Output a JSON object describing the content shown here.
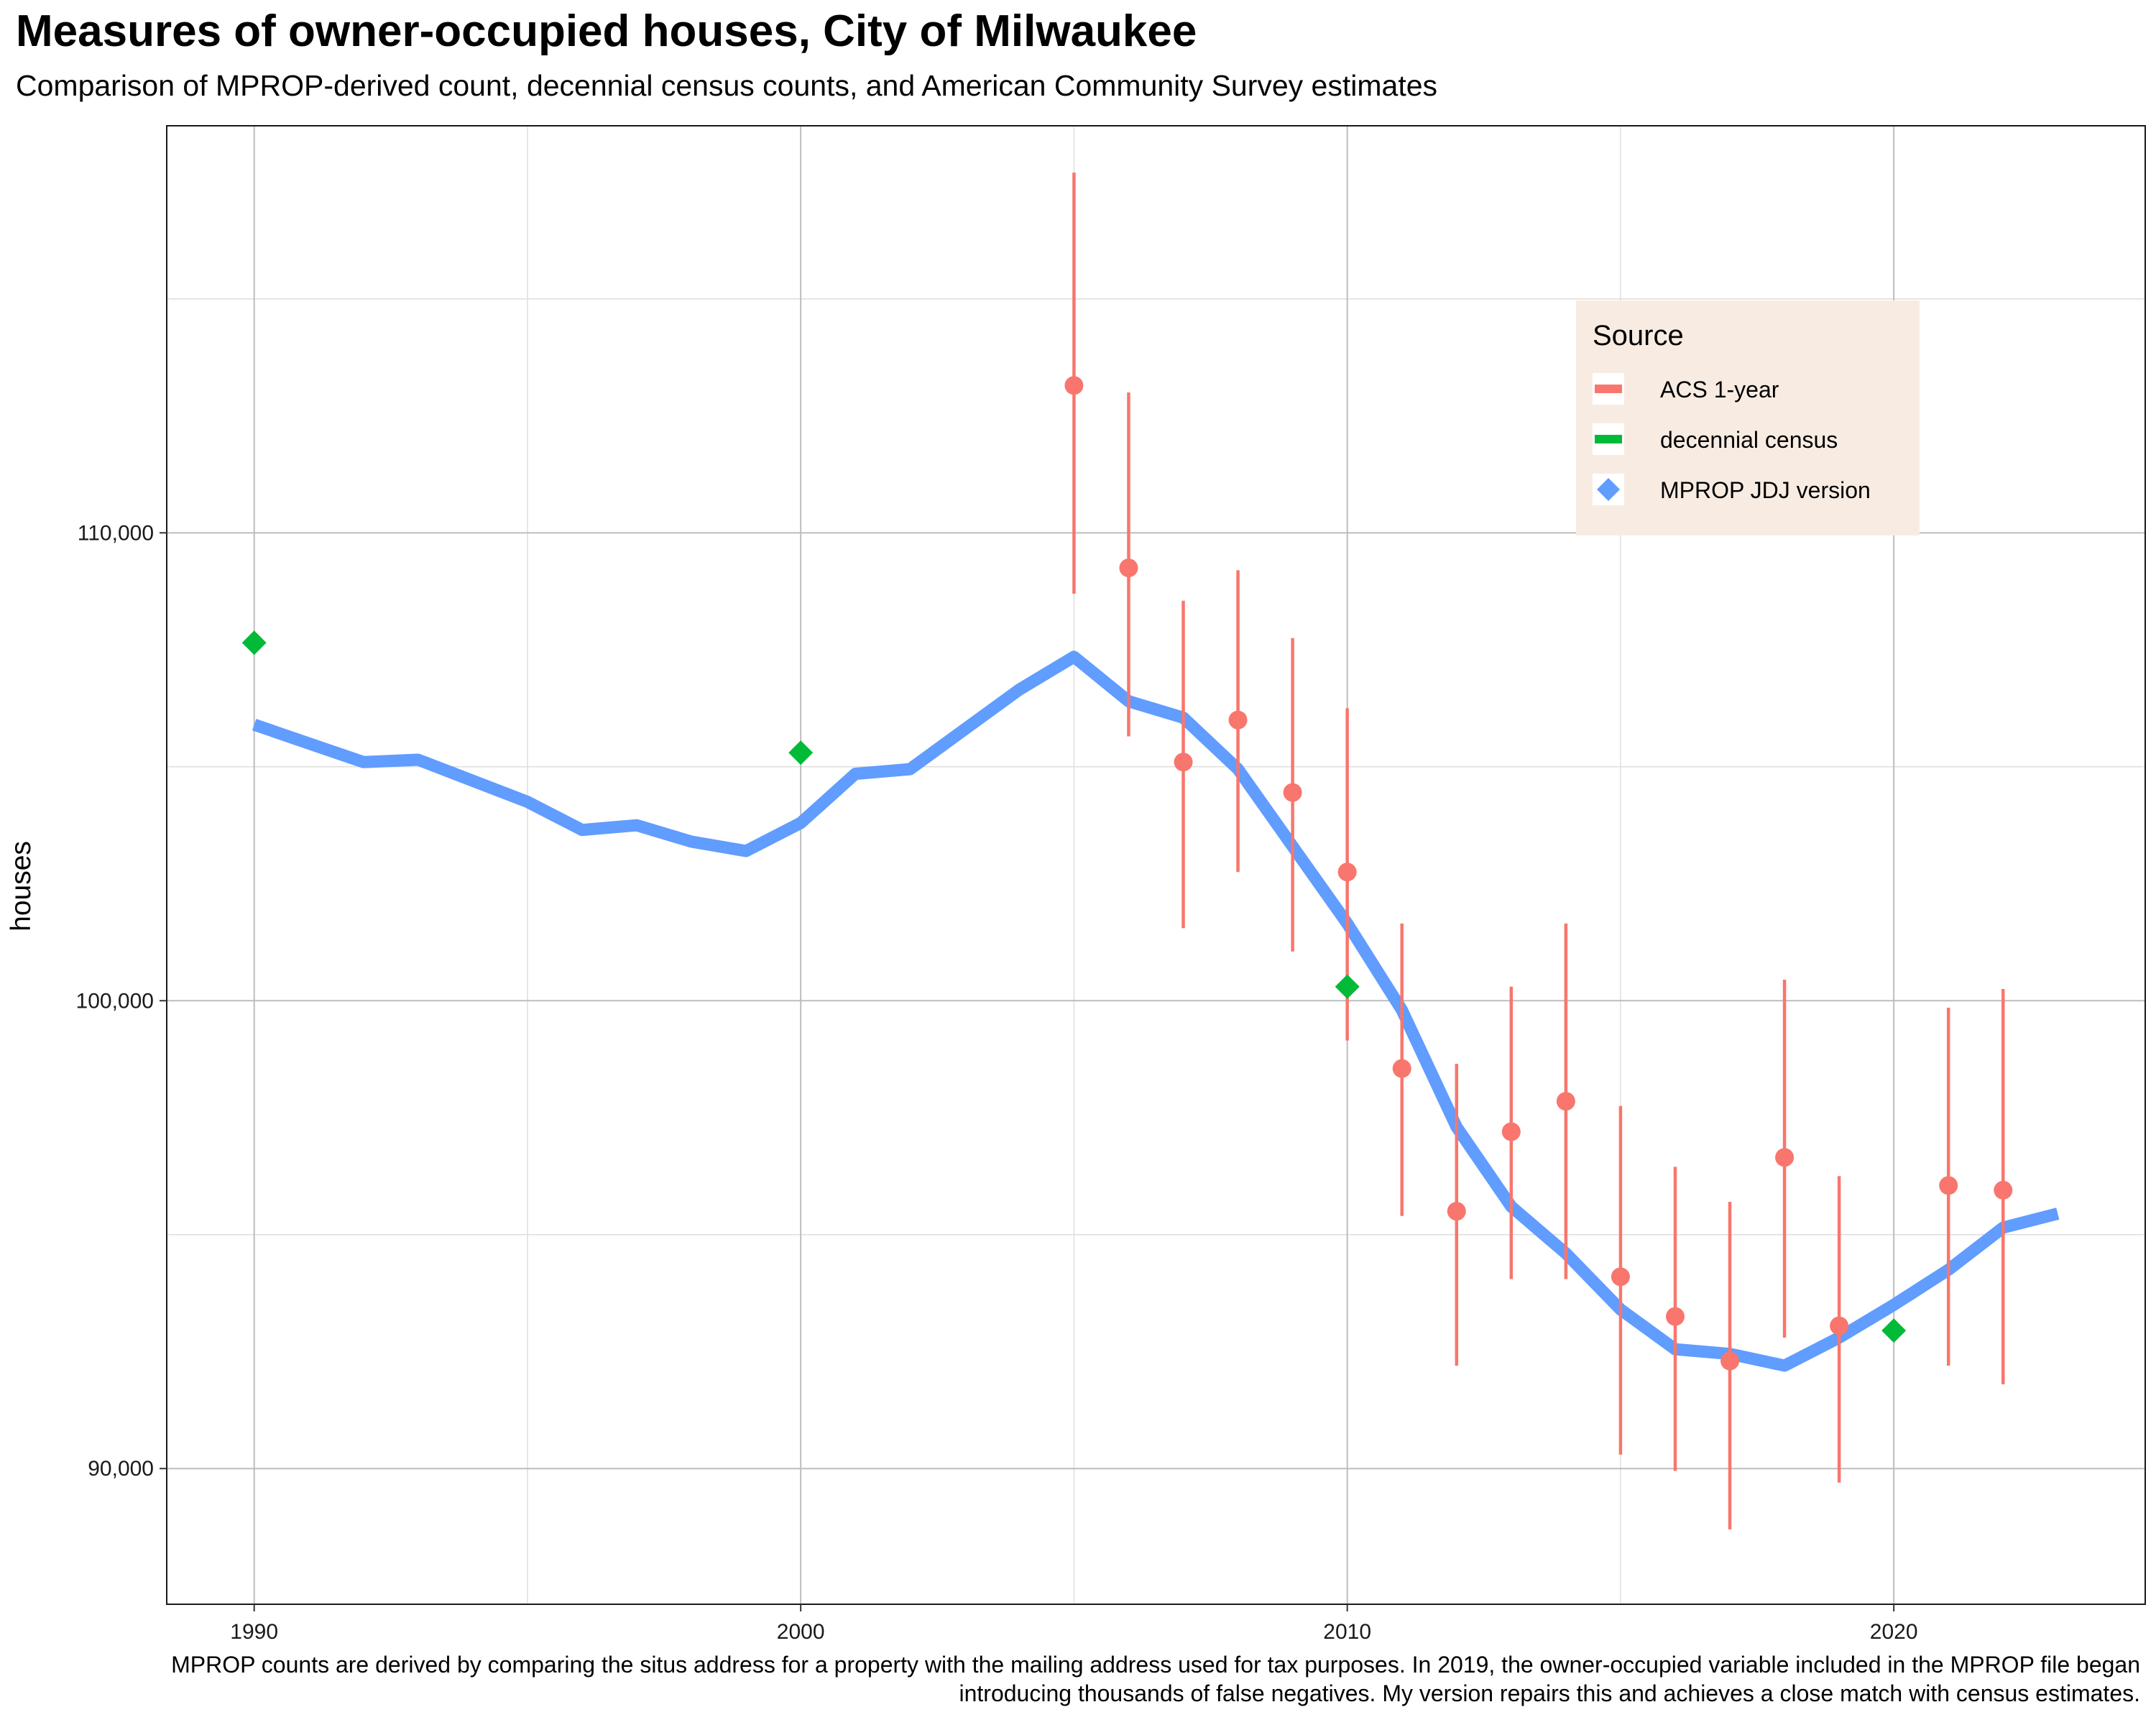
{
  "chart_data": {
    "type": "line",
    "title": "Measures of owner-occupied houses, City of Milwaukee",
    "subtitle": "Comparison of MPROP-derived count, decennial census counts, and American Community Survey estimates",
    "caption": "MPROP counts are derived by comparing the situs address for a property with the mailing address used for tax purposes. In 2019, the owner-occupied variable included in the MPROP file began introducing thousands of false negatives. My version repairs this and achieves a close match with census estimates.",
    "xlabel": "",
    "ylabel": "houses",
    "xlim": [
      1988.4,
      2024.6
    ],
    "ylim": [
      87100,
      118700
    ],
    "x_ticks": [
      1990,
      2000,
      2010,
      2020
    ],
    "x_minor": [
      1995,
      2005,
      2015
    ],
    "y_ticks": [
      90000,
      100000,
      110000
    ],
    "y_tick_labels": [
      "90,000",
      "100,000",
      "110,000"
    ],
    "y_minor": [
      95000,
      105000,
      115000
    ],
    "grid": true,
    "legend": {
      "title": "Source",
      "position": "top-right",
      "entries": [
        "ACS 1-year",
        "decennial census",
        "MPROP JDJ version"
      ]
    },
    "colors": {
      "acs": "#F8766D",
      "census": "#00BA38",
      "mprop": "#619CFF",
      "legend_bg": "#F8ECE2"
    },
    "series": [
      {
        "name": "MPROP JDJ version",
        "kind": "line",
        "x": [
          1990,
          1991,
          1992,
          1993,
          1994,
          1995,
          1996,
          1997,
          1998,
          1999,
          2000,
          2001,
          2002,
          2003,
          2004,
          2005,
          2006,
          2007,
          2008,
          2009,
          2010,
          2011,
          2012,
          2013,
          2014,
          2015,
          2016,
          2017,
          2018,
          2019,
          2020,
          2021,
          2022,
          2023
        ],
        "y": [
          105900,
          105500,
          105100,
          105150,
          104700,
          104250,
          103650,
          103750,
          103400,
          103200,
          103800,
          104850,
          104950,
          105800,
          106650,
          107350,
          106400,
          106050,
          104950,
          103300,
          101650,
          99800,
          97300,
          95600,
          94600,
          93400,
          92550,
          92450,
          92200,
          92800,
          93500,
          94250,
          95150,
          95450
        ]
      },
      {
        "name": "decennial census",
        "kind": "point",
        "x": [
          1990,
          2000,
          2010,
          2020
        ],
        "y": [
          107650,
          105300,
          100300,
          92950
        ]
      },
      {
        "name": "ACS 1-year",
        "kind": "pointrange",
        "x": [
          2005,
          2006,
          2007,
          2008,
          2009,
          2010,
          2011,
          2012,
          2013,
          2014,
          2015,
          2016,
          2017,
          2018,
          2019,
          2021,
          2022
        ],
        "y": [
          113150,
          109250,
          105100,
          106000,
          104450,
          102750,
          98550,
          95500,
          97200,
          97850,
          94100,
          93250,
          92300,
          96650,
          93050,
          96050,
          95950
        ],
        "ymin": [
          108700,
          105650,
          101550,
          102750,
          101050,
          99150,
          95400,
          92200,
          94050,
          94050,
          90300,
          89950,
          88700,
          92800,
          89700,
          92200,
          91800
        ],
        "ymax": [
          117700,
          113000,
          108550,
          109200,
          107750,
          106250,
          101650,
          98650,
          100300,
          101650,
          97750,
          96450,
          95700,
          100450,
          96250,
          99850,
          100250
        ]
      }
    ]
  }
}
